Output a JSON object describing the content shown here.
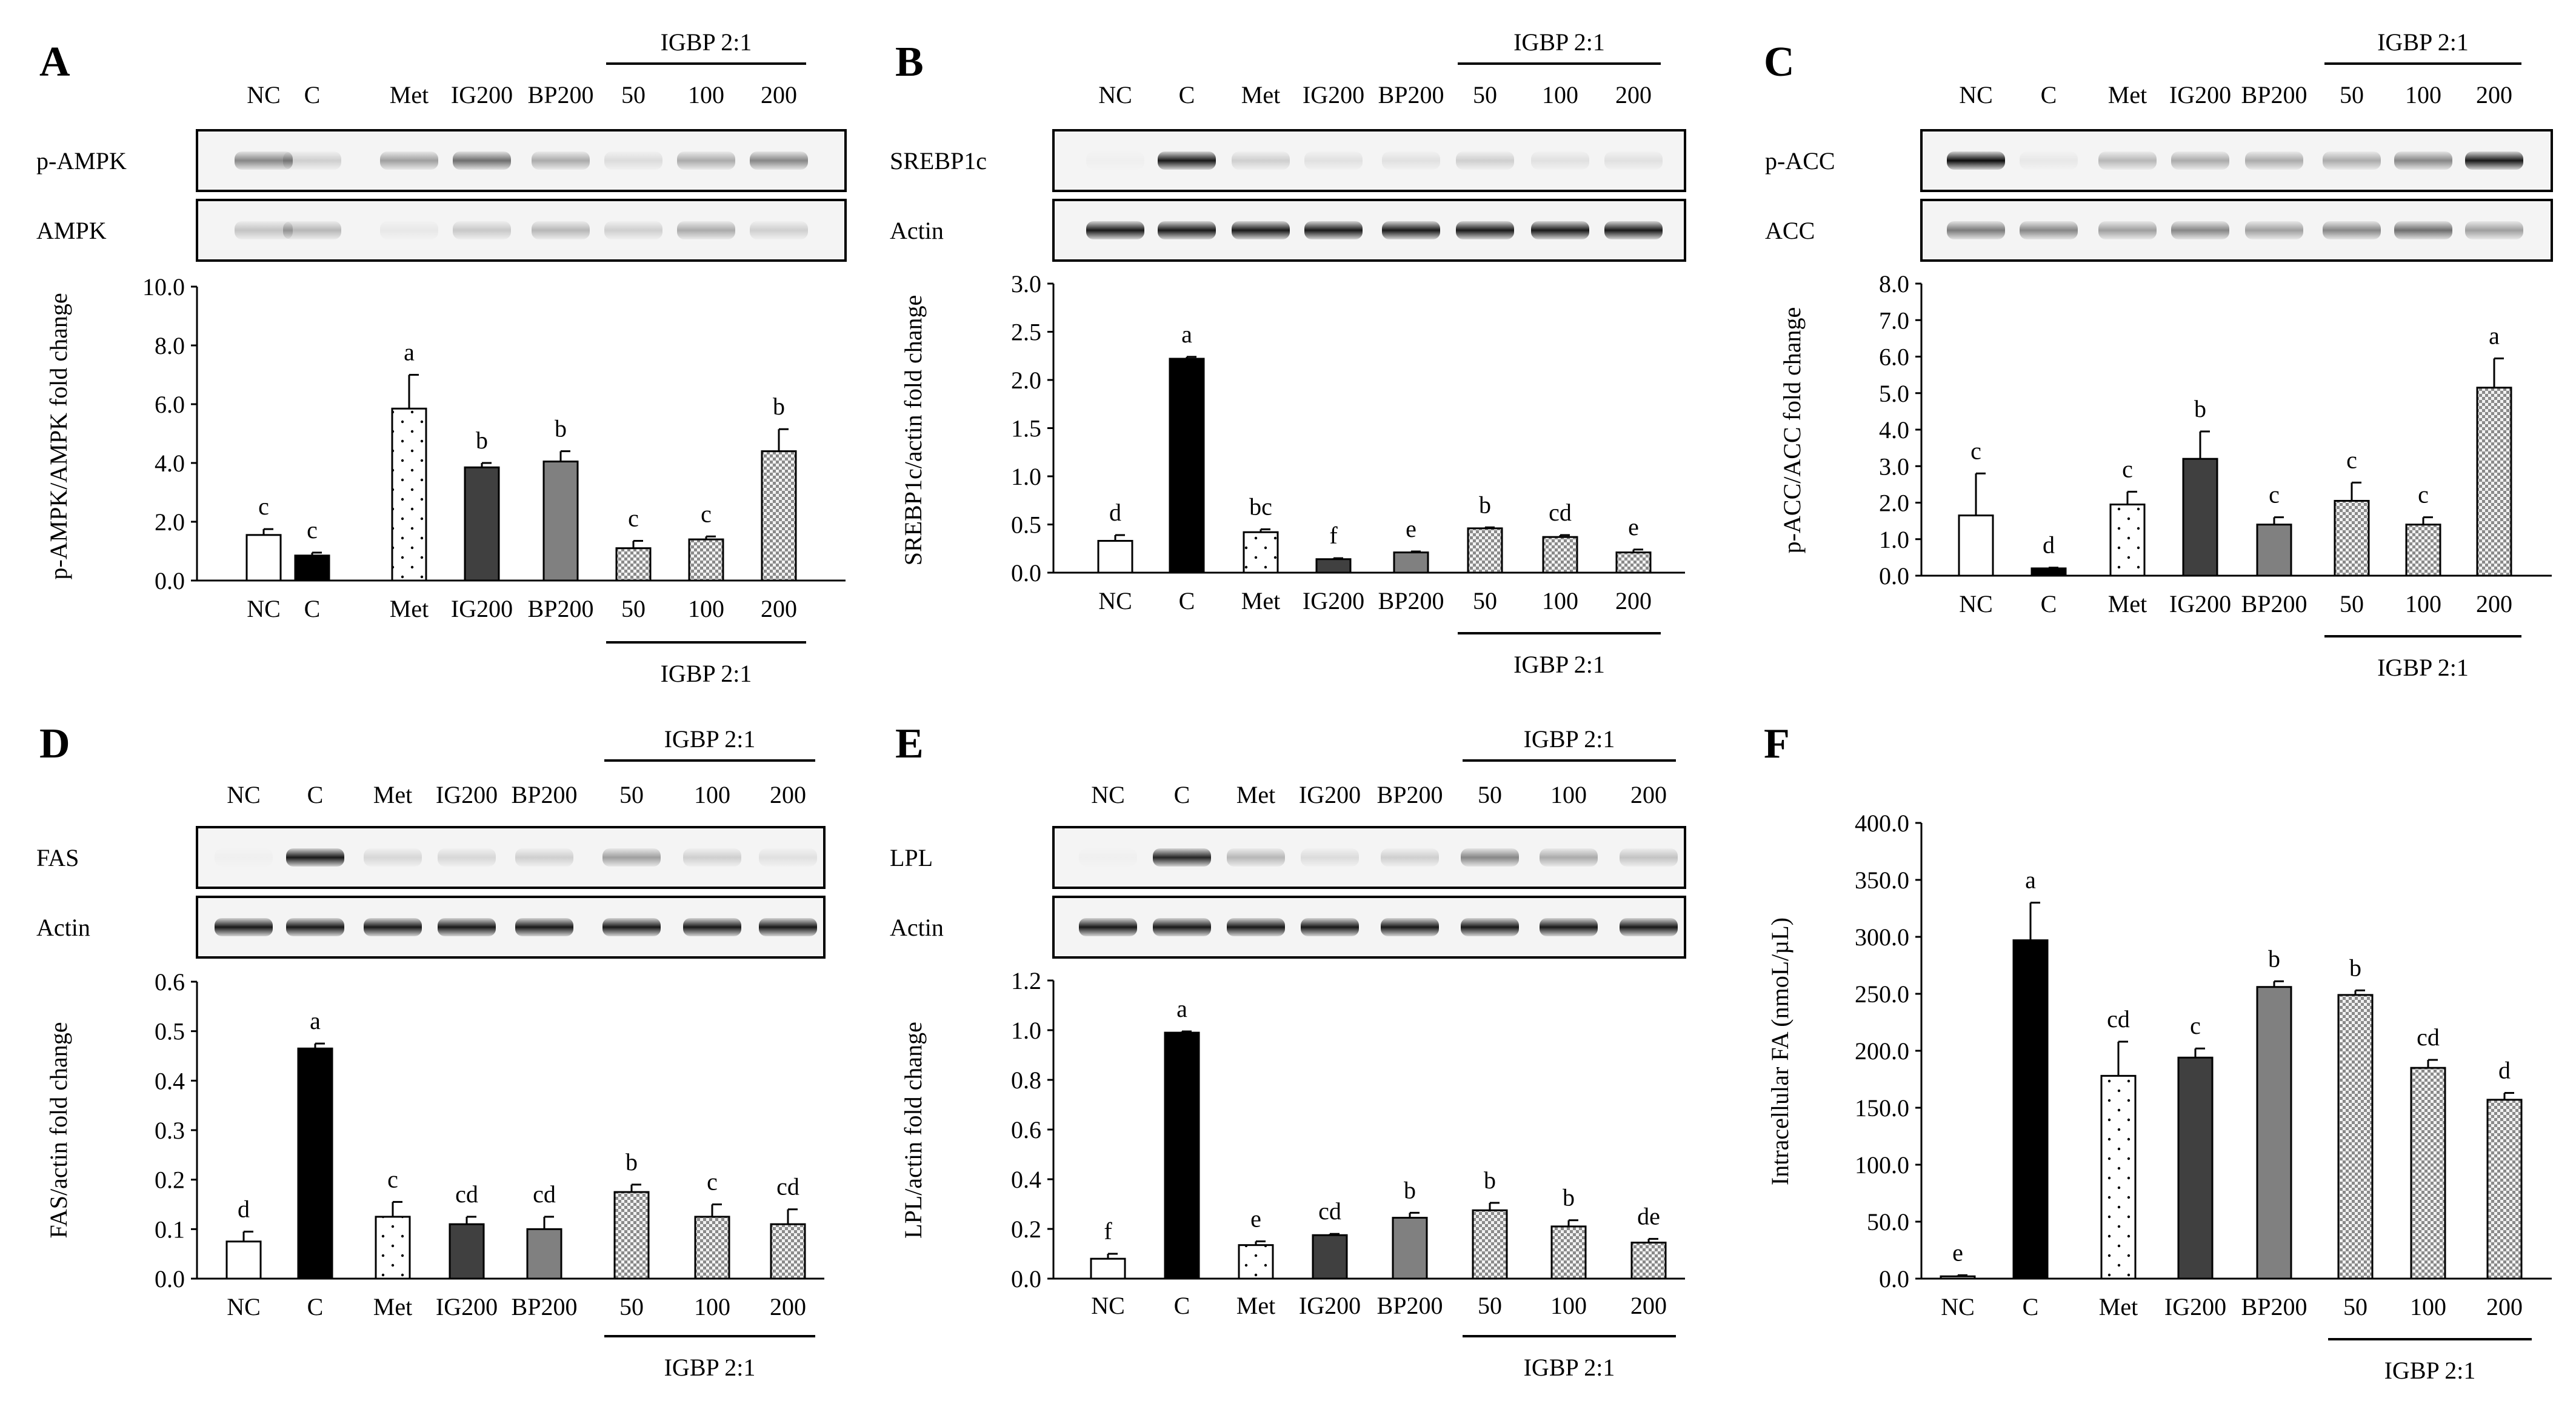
{
  "colors": {
    "axis": "#000000",
    "bar_outline": "#000000",
    "solid": "#000000",
    "dark": "#404040",
    "mid": "#808080",
    "open": "#ffffff"
  },
  "group_label": "IGBP 2:1",
  "top_lanes": [
    "NC",
    "C",
    "Met",
    "IG200",
    "BP200",
    "50",
    "100",
    "200"
  ],
  "chart_data": [
    {
      "panel": "A",
      "type": "bar",
      "blot_rows": [
        "p-AMPK",
        "AMPK"
      ],
      "blot_intensities": [
        [
          0.45,
          0.15,
          0.35,
          0.55,
          0.3,
          0.1,
          0.3,
          0.45
        ],
        [
          0.2,
          0.25,
          0.05,
          0.18,
          0.25,
          0.15,
          0.3,
          0.15
        ]
      ],
      "categories": [
        "NC",
        "C",
        "Met",
        "IG200",
        "BP200",
        "50",
        "100",
        "200"
      ],
      "values": [
        1.55,
        0.85,
        5.85,
        3.85,
        4.05,
        1.1,
        1.4,
        4.4
      ],
      "errors": [
        0.2,
        0.1,
        1.15,
        0.15,
        0.35,
        0.25,
        0.1,
        0.75
      ],
      "letters": [
        "c",
        "c",
        "a",
        "b",
        "b",
        "c",
        "c",
        "b"
      ],
      "ylabel": "p-AMPK/AMPK fold change",
      "ylim": [
        0,
        10
      ],
      "yticks": [
        "0.0",
        "2.0",
        "4.0",
        "6.0",
        "8.0",
        "10.0"
      ]
    },
    {
      "panel": "B",
      "type": "bar",
      "blot_rows": [
        "SREBP1c",
        "Actin"
      ],
      "blot_intensities": [
        [
          0.02,
          0.9,
          0.15,
          0.08,
          0.08,
          0.15,
          0.08,
          0.08
        ],
        [
          0.9,
          0.9,
          0.9,
          0.9,
          0.9,
          0.9,
          0.9,
          0.9
        ]
      ],
      "categories": [
        "NC",
        "C",
        "Met",
        "IG200",
        "BP200",
        "50",
        "100",
        "200"
      ],
      "values": [
        0.33,
        2.22,
        0.42,
        0.14,
        0.21,
        0.46,
        0.37,
        0.21
      ],
      "errors": [
        0.06,
        0.02,
        0.03,
        0.01,
        0.01,
        0.01,
        0.02,
        0.03
      ],
      "letters": [
        "d",
        "a",
        "bc",
        "f",
        "e",
        "b",
        "cd",
        "e"
      ],
      "ylabel": "SREBP1c/actin fold change",
      "ylim": [
        0,
        3
      ],
      "yticks": [
        "0.0",
        "0.5",
        "1.0",
        "1.5",
        "2.0",
        "2.5",
        "3.0"
      ]
    },
    {
      "panel": "C",
      "type": "bar",
      "blot_rows": [
        "p-ACC",
        "ACC"
      ],
      "blot_intensities": [
        [
          0.95,
          0.05,
          0.25,
          0.3,
          0.3,
          0.3,
          0.45,
          0.9
        ],
        [
          0.5,
          0.45,
          0.35,
          0.45,
          0.35,
          0.45,
          0.55,
          0.35
        ]
      ],
      "categories": [
        "NC",
        "C",
        "Met",
        "IG200",
        "BP200",
        "50",
        "100",
        "200"
      ],
      "values": [
        1.65,
        0.2,
        1.95,
        3.2,
        1.4,
        2.05,
        1.4,
        5.15
      ],
      "errors": [
        1.15,
        0.02,
        0.35,
        0.75,
        0.2,
        0.5,
        0.2,
        0.8
      ],
      "letters": [
        "c",
        "d",
        "c",
        "b",
        "c",
        "c",
        "c",
        "a"
      ],
      "ylabel": "p-ACC/ACC fold change",
      "ylim": [
        0,
        8
      ],
      "yticks": [
        "0.0",
        "1.0",
        "2.0",
        "3.0",
        "4.0",
        "5.0",
        "6.0",
        "7.0",
        "8.0"
      ]
    },
    {
      "panel": "D",
      "type": "bar",
      "blot_rows": [
        "FAS",
        "Actin"
      ],
      "blot_intensities": [
        [
          0.02,
          0.9,
          0.12,
          0.12,
          0.15,
          0.35,
          0.15,
          0.08
        ],
        [
          0.9,
          0.9,
          0.9,
          0.9,
          0.9,
          0.9,
          0.9,
          0.9
        ]
      ],
      "categories": [
        "NC",
        "C",
        "Met",
        "IG200",
        "BP200",
        "50",
        "100",
        "200"
      ],
      "values": [
        0.075,
        0.465,
        0.125,
        0.11,
        0.1,
        0.175,
        0.125,
        0.11
      ],
      "errors": [
        0.02,
        0.01,
        0.03,
        0.015,
        0.025,
        0.015,
        0.025,
        0.03
      ],
      "letters": [
        "d",
        "a",
        "c",
        "cd",
        "cd",
        "b",
        "c",
        "cd"
      ],
      "ylabel": "FAS/actin fold change",
      "ylim": [
        0,
        0.6
      ],
      "yticks": [
        "0.0",
        "0.1",
        "0.2",
        "0.3",
        "0.4",
        "0.5",
        "0.6"
      ]
    },
    {
      "panel": "E",
      "type": "bar",
      "blot_rows": [
        "LPL",
        "Actin"
      ],
      "blot_intensities": [
        [
          0.02,
          0.85,
          0.25,
          0.1,
          0.15,
          0.45,
          0.3,
          0.2
        ],
        [
          0.9,
          0.9,
          0.9,
          0.9,
          0.9,
          0.9,
          0.9,
          0.9
        ]
      ],
      "categories": [
        "NC",
        "C",
        "Met",
        "IG200",
        "BP200",
        "50",
        "100",
        "200"
      ],
      "values": [
        0.08,
        0.99,
        0.135,
        0.175,
        0.245,
        0.275,
        0.21,
        0.145
      ],
      "errors": [
        0.02,
        0.005,
        0.015,
        0.005,
        0.02,
        0.03,
        0.025,
        0.015
      ],
      "letters": [
        "f",
        "a",
        "e",
        "cd",
        "b",
        "b",
        "b",
        "de"
      ],
      "ylabel": "LPL/actin fold change",
      "ylim": [
        0,
        1.2
      ],
      "yticks": [
        "0.0",
        "0.2",
        "0.4",
        "0.6",
        "0.8",
        "1.0",
        "1.2"
      ]
    },
    {
      "panel": "F",
      "type": "bar",
      "blot_rows": [],
      "blot_intensities": [],
      "categories": [
        "NC",
        "C",
        "Met",
        "IG200",
        "BP200",
        "50",
        "100",
        "200"
      ],
      "values": [
        2,
        297,
        178,
        194,
        256,
        249,
        185,
        157
      ],
      "errors": [
        1,
        33,
        30,
        8,
        5,
        4,
        7,
        6
      ],
      "letters": [
        "e",
        "a",
        "cd",
        "c",
        "b",
        "b",
        "cd",
        "d"
      ],
      "ylabel": "Intracellular FA (nmoL/µL)",
      "ylim": [
        0,
        400
      ],
      "yticks": [
        "0.0",
        "50.0",
        "100.0",
        "150.0",
        "200.0",
        "250.0",
        "300.0",
        "350.0",
        "400.0"
      ]
    }
  ]
}
